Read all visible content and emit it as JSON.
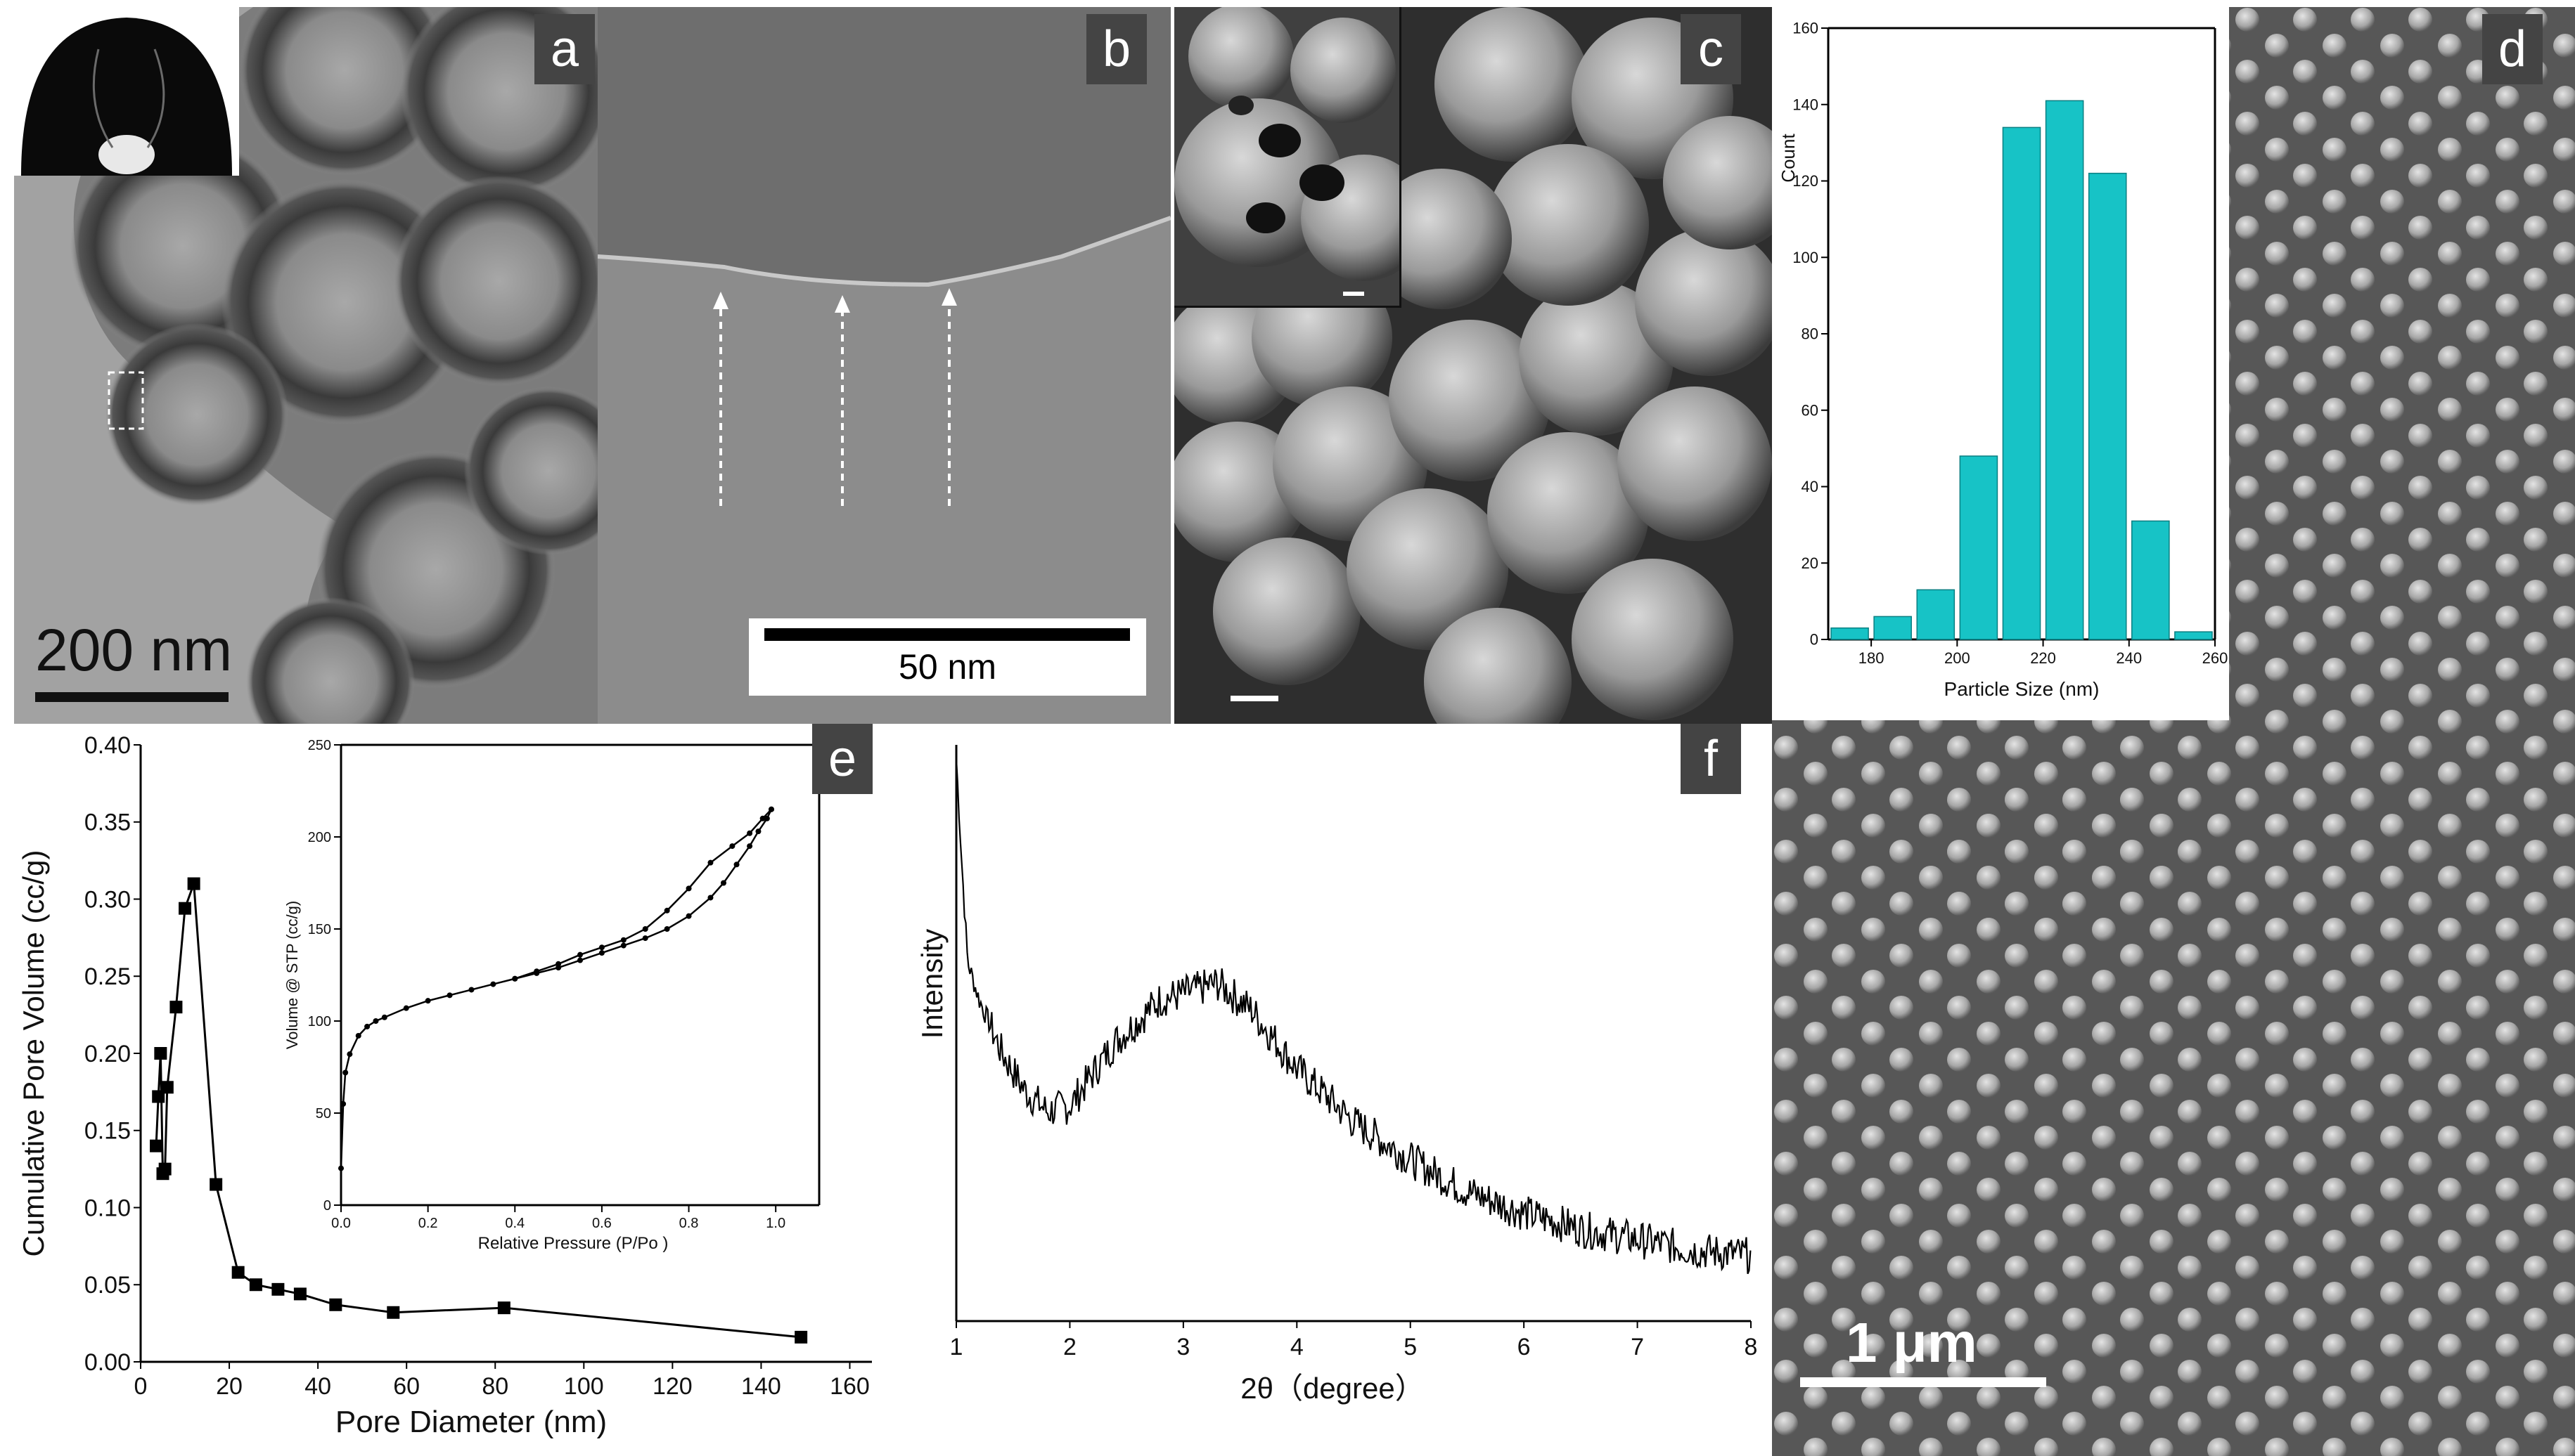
{
  "figure": {
    "panel_labels": {
      "a": "a",
      "b": "b",
      "c": "c",
      "d": "d",
      "e": "e",
      "f": "f"
    },
    "scale_bars": {
      "a": "200 nm",
      "b": "50 nm",
      "d": "1 μm"
    }
  },
  "chart_data": [
    {
      "id": "d-histogram",
      "type": "bar",
      "title": "",
      "xlabel": "Particle Size (nm)",
      "ylabel": "Count",
      "categories": [
        175,
        185,
        195,
        205,
        215,
        225,
        235,
        245,
        255
      ],
      "values": [
        3,
        6,
        13,
        48,
        134,
        141,
        122,
        31,
        2
      ],
      "bin_width": 10,
      "xlim": [
        170,
        260
      ],
      "ylim": [
        0,
        160
      ],
      "xticks": [
        180,
        200,
        220,
        240,
        260
      ],
      "yticks": [
        0,
        20,
        40,
        60,
        80,
        100,
        120,
        140,
        160
      ],
      "bar_color": "#17c3c6"
    },
    {
      "id": "e-pore",
      "type": "line",
      "title": "",
      "xlabel": "Pore Diameter (nm)",
      "ylabel": "Cumulative Pore Volume (cc/g)",
      "x": [
        3.5,
        4,
        4.5,
        5,
        5.5,
        6,
        8,
        10,
        12,
        17,
        22,
        26,
        31,
        36,
        44,
        57,
        82,
        149
      ],
      "y": [
        0.14,
        0.172,
        0.2,
        0.122,
        0.125,
        0.178,
        0.23,
        0.294,
        0.31,
        0.115,
        0.058,
        0.05,
        0.047,
        0.044,
        0.037,
        0.032,
        0.035,
        0.016
      ],
      "xlim": [
        0,
        165
      ],
      "ylim": [
        0,
        0.4
      ],
      "xticks": [
        0,
        20,
        40,
        60,
        80,
        100,
        120,
        140,
        160
      ],
      "yticks": [
        "0.00",
        "0.05",
        "0.10",
        "0.15",
        "0.20",
        "0.25",
        "0.30",
        "0.35",
        "0.40"
      ],
      "marker": "square",
      "grid": false
    },
    {
      "id": "e-inset-isotherm",
      "type": "line",
      "title": "",
      "xlabel": "Relative Pressure (P/Po )",
      "ylabel": "Volume @ STP (cc/g)",
      "series": [
        {
          "x": [
            0.0,
            0.005,
            0.01,
            0.02,
            0.04,
            0.06,
            0.08,
            0.1,
            0.15,
            0.2,
            0.25,
            0.3,
            0.35,
            0.4,
            0.45,
            0.5,
            0.55,
            0.6,
            0.65,
            0.7,
            0.75,
            0.8,
            0.85,
            0.88,
            0.91,
            0.94,
            0.96,
            0.98,
            0.99
          ],
          "y": [
            20,
            55,
            72,
            82,
            92,
            97,
            100,
            102,
            107,
            111,
            114,
            117,
            120,
            123,
            126,
            129,
            133,
            137,
            141,
            145,
            150,
            157,
            167,
            175,
            185,
            195,
            203,
            210,
            215
          ]
        },
        {
          "x": [
            0.99,
            0.97,
            0.94,
            0.9,
            0.85,
            0.8,
            0.75,
            0.7,
            0.65,
            0.6,
            0.55,
            0.5,
            0.45,
            0.4
          ],
          "y": [
            215,
            210,
            202,
            195,
            186,
            172,
            160,
            150,
            144,
            140,
            136,
            131,
            127,
            123
          ]
        }
      ],
      "xlim": [
        0,
        1.1
      ],
      "ylim": [
        0,
        250
      ],
      "xticks": [
        "0.0",
        "0.2",
        "0.4",
        "0.6",
        "0.8",
        "1.0"
      ],
      "yticks": [
        0,
        50,
        100,
        150,
        200,
        250
      ]
    },
    {
      "id": "f-xrd",
      "type": "line",
      "title": "",
      "xlabel": "2θ（degree）",
      "ylabel": "Intensity",
      "x_keypoints": [
        1.0,
        1.05,
        1.1,
        1.2,
        1.4,
        1.6,
        1.8,
        2.0,
        2.4,
        2.8,
        3.0,
        3.3,
        3.6,
        4.0,
        4.5,
        5.0,
        5.5,
        6.0,
        6.5,
        7.0,
        7.5,
        8.0
      ],
      "y_keypoints": [
        1.0,
        0.8,
        0.62,
        0.55,
        0.45,
        0.38,
        0.34,
        0.35,
        0.47,
        0.55,
        0.56,
        0.58,
        0.53,
        0.42,
        0.32,
        0.25,
        0.19,
        0.15,
        0.12,
        0.1,
        0.08,
        0.07
      ],
      "xlim": [
        1,
        8
      ],
      "xticks": [
        1,
        2,
        3,
        4,
        5,
        6,
        7,
        8
      ],
      "noise": "high-frequency"
    }
  ]
}
